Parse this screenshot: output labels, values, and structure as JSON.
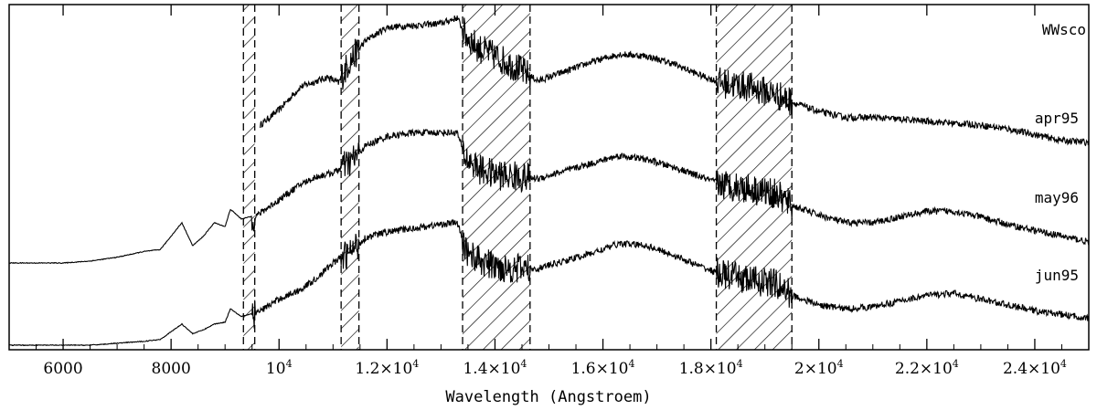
{
  "chart_data": {
    "type": "line",
    "title": "WWsco",
    "xlabel": "Wavelength (Angstroem)",
    "ylabel": "",
    "xlim": [
      5000,
      25000
    ],
    "x_ticks": [
      {
        "value": 6000,
        "base": "6000",
        "exp": ""
      },
      {
        "value": 8000,
        "base": "8000",
        "exp": ""
      },
      {
        "value": 10000,
        "base": "10",
        "exp": "4"
      },
      {
        "value": 12000,
        "base": "1.2×10",
        "exp": "4"
      },
      {
        "value": 14000,
        "base": "1.4×10",
        "exp": "4"
      },
      {
        "value": 16000,
        "base": "1.6×10",
        "exp": "4"
      },
      {
        "value": 18000,
        "base": "1.8×10",
        "exp": "4"
      },
      {
        "value": 20000,
        "base": "2×10",
        "exp": "4"
      },
      {
        "value": 22000,
        "base": "2.2×10",
        "exp": "4"
      },
      {
        "value": 24000,
        "base": "2.4×10",
        "exp": "4"
      }
    ],
    "shaded_bands": [
      [
        9340,
        9550
      ],
      [
        11150,
        11480
      ],
      [
        13400,
        14650
      ],
      [
        18100,
        19500
      ]
    ],
    "series": [
      {
        "name": "apr95",
        "start": 9650,
        "points": [
          [
            9650,
            0.3
          ],
          [
            10000,
            0.38
          ],
          [
            10400,
            0.5
          ],
          [
            10900,
            0.55
          ],
          [
            11100,
            0.52
          ],
          [
            11300,
            0.63
          ],
          [
            11600,
            0.74
          ],
          [
            12000,
            0.81
          ],
          [
            12500,
            0.82
          ],
          [
            13000,
            0.83
          ],
          [
            13300,
            0.86
          ],
          [
            13450,
            0.77
          ],
          [
            13700,
            0.7
          ],
          [
            14000,
            0.66
          ],
          [
            14400,
            0.6
          ],
          [
            14800,
            0.53
          ],
          [
            15300,
            0.58
          ],
          [
            15800,
            0.63
          ],
          [
            16300,
            0.67
          ],
          [
            16800,
            0.66
          ],
          [
            17300,
            0.62
          ],
          [
            17800,
            0.56
          ],
          [
            18200,
            0.52
          ],
          [
            18700,
            0.5
          ],
          [
            19200,
            0.46
          ],
          [
            19500,
            0.42
          ],
          [
            20000,
            0.37
          ],
          [
            20500,
            0.34
          ],
          [
            21000,
            0.34
          ],
          [
            21500,
            0.33
          ],
          [
            22000,
            0.32
          ],
          [
            22500,
            0.31
          ],
          [
            23000,
            0.3
          ],
          [
            23500,
            0.28
          ],
          [
            24000,
            0.25
          ],
          [
            24500,
            0.22
          ],
          [
            25000,
            0.21
          ]
        ]
      },
      {
        "name": "may96",
        "start": 5000,
        "points": [
          [
            5000,
            0.0
          ],
          [
            6000,
            0.0
          ],
          [
            6500,
            0.01
          ],
          [
            7000,
            0.03
          ],
          [
            7500,
            0.06
          ],
          [
            7800,
            0.07
          ],
          [
            8000,
            0.14
          ],
          [
            8200,
            0.21
          ],
          [
            8400,
            0.09
          ],
          [
            8600,
            0.14
          ],
          [
            8800,
            0.21
          ],
          [
            9000,
            0.19
          ],
          [
            9100,
            0.28
          ],
          [
            9300,
            0.23
          ],
          [
            9600,
            0.25
          ],
          [
            10000,
            0.33
          ],
          [
            10400,
            0.41
          ],
          [
            10700,
            0.45
          ],
          [
            11000,
            0.47
          ],
          [
            11300,
            0.52
          ],
          [
            11600,
            0.61
          ],
          [
            12000,
            0.66
          ],
          [
            12500,
            0.68
          ],
          [
            13000,
            0.68
          ],
          [
            13300,
            0.68
          ],
          [
            13450,
            0.55
          ],
          [
            13700,
            0.49
          ],
          [
            14000,
            0.46
          ],
          [
            14400,
            0.45
          ],
          [
            14800,
            0.44
          ],
          [
            15300,
            0.48
          ],
          [
            15800,
            0.52
          ],
          [
            16300,
            0.56
          ],
          [
            16800,
            0.54
          ],
          [
            17300,
            0.5
          ],
          [
            17800,
            0.45
          ],
          [
            18200,
            0.41
          ],
          [
            18700,
            0.39
          ],
          [
            19200,
            0.36
          ],
          [
            19500,
            0.3
          ],
          [
            20000,
            0.25
          ],
          [
            20500,
            0.21
          ],
          [
            21000,
            0.21
          ],
          [
            21500,
            0.24
          ],
          [
            22000,
            0.27
          ],
          [
            22500,
            0.27
          ],
          [
            23000,
            0.24
          ],
          [
            23500,
            0.2
          ],
          [
            24000,
            0.17
          ],
          [
            24500,
            0.14
          ],
          [
            25000,
            0.11
          ]
        ]
      },
      {
        "name": "jun95",
        "start": 5000,
        "points": [
          [
            5000,
            0.0
          ],
          [
            6000,
            0.0
          ],
          [
            6500,
            0.0
          ],
          [
            7000,
            0.01
          ],
          [
            7500,
            0.02
          ],
          [
            7800,
            0.03
          ],
          [
            8000,
            0.07
          ],
          [
            8200,
            0.11
          ],
          [
            8400,
            0.06
          ],
          [
            8600,
            0.08
          ],
          [
            8800,
            0.11
          ],
          [
            9000,
            0.12
          ],
          [
            9100,
            0.19
          ],
          [
            9300,
            0.15
          ],
          [
            9600,
            0.17
          ],
          [
            10000,
            0.24
          ],
          [
            10400,
            0.29
          ],
          [
            10700,
            0.35
          ],
          [
            11000,
            0.43
          ],
          [
            11300,
            0.48
          ],
          [
            11600,
            0.56
          ],
          [
            12000,
            0.59
          ],
          [
            12500,
            0.61
          ],
          [
            13000,
            0.63
          ],
          [
            13300,
            0.64
          ],
          [
            13450,
            0.5
          ],
          [
            13700,
            0.44
          ],
          [
            14000,
            0.41
          ],
          [
            14400,
            0.4
          ],
          [
            14800,
            0.4
          ],
          [
            15300,
            0.44
          ],
          [
            15800,
            0.48
          ],
          [
            16300,
            0.53
          ],
          [
            16800,
            0.52
          ],
          [
            17300,
            0.47
          ],
          [
            17800,
            0.41
          ],
          [
            18200,
            0.37
          ],
          [
            18700,
            0.34
          ],
          [
            19200,
            0.32
          ],
          [
            19500,
            0.26
          ],
          [
            20000,
            0.21
          ],
          [
            20500,
            0.19
          ],
          [
            21000,
            0.2
          ],
          [
            21500,
            0.23
          ],
          [
            22000,
            0.26
          ],
          [
            22500,
            0.27
          ],
          [
            23000,
            0.24
          ],
          [
            23500,
            0.21
          ],
          [
            24000,
            0.18
          ],
          [
            24500,
            0.16
          ],
          [
            25000,
            0.14
          ]
        ]
      }
    ]
  }
}
